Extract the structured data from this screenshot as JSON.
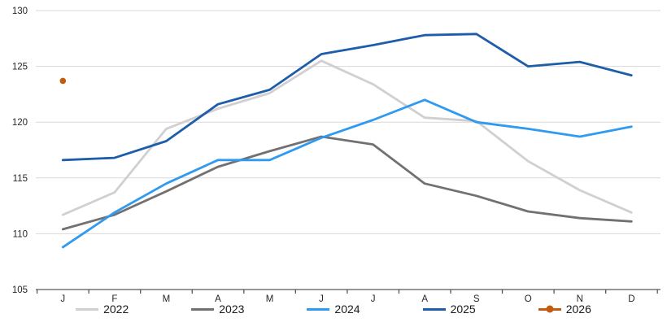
{
  "chart_data": {
    "type": "line",
    "title": "",
    "xlabel": "",
    "ylabel": "",
    "x_labels": [
      "J",
      "F",
      "M",
      "A",
      "M",
      "J",
      "J",
      "A",
      "S",
      "O",
      "N",
      "D"
    ],
    "y_axis": {
      "min": 105,
      "max": 130,
      "step": 5,
      "tick_labels": [
        "105",
        "110",
        "115",
        "120",
        "125",
        "130"
      ]
    },
    "grid": true,
    "legend_position": "bottom",
    "series": [
      {
        "name": "2022",
        "color": "#D1CFCF",
        "style": "line",
        "values": [
          111.7,
          113.7,
          119.4,
          121.2,
          122.6,
          125.5,
          123.4,
          120.4,
          120.1,
          116.5,
          113.9,
          111.9
        ]
      },
      {
        "name": "2023",
        "color": "#757070",
        "style": "line",
        "values": [
          110.4,
          111.7,
          113.8,
          116.0,
          117.4,
          118.7,
          118.0,
          114.5,
          113.4,
          112.0,
          111.4,
          111.1
        ]
      },
      {
        "name": "2024",
        "color": "#2F9AEF",
        "style": "line",
        "values": [
          108.8,
          111.9,
          114.5,
          116.6,
          116.6,
          118.6,
          120.2,
          122.0,
          120.0,
          119.4,
          118.7,
          119.6
        ]
      },
      {
        "name": "2025",
        "color": "#1E5DA9",
        "style": "line",
        "values": [
          116.6,
          116.8,
          118.3,
          121.6,
          122.9,
          126.1,
          126.9,
          127.8,
          127.9,
          125.0,
          125.4,
          124.2
        ]
      },
      {
        "name": "2026",
        "color": "#C55A11",
        "style": "point",
        "values": [
          123.7,
          null,
          null,
          null,
          null,
          null,
          null,
          null,
          null,
          null,
          null,
          null
        ]
      }
    ],
    "colors": {
      "gridline": "#D9D9D9",
      "axis_line": "#595959",
      "tick_label": "#262626"
    }
  }
}
